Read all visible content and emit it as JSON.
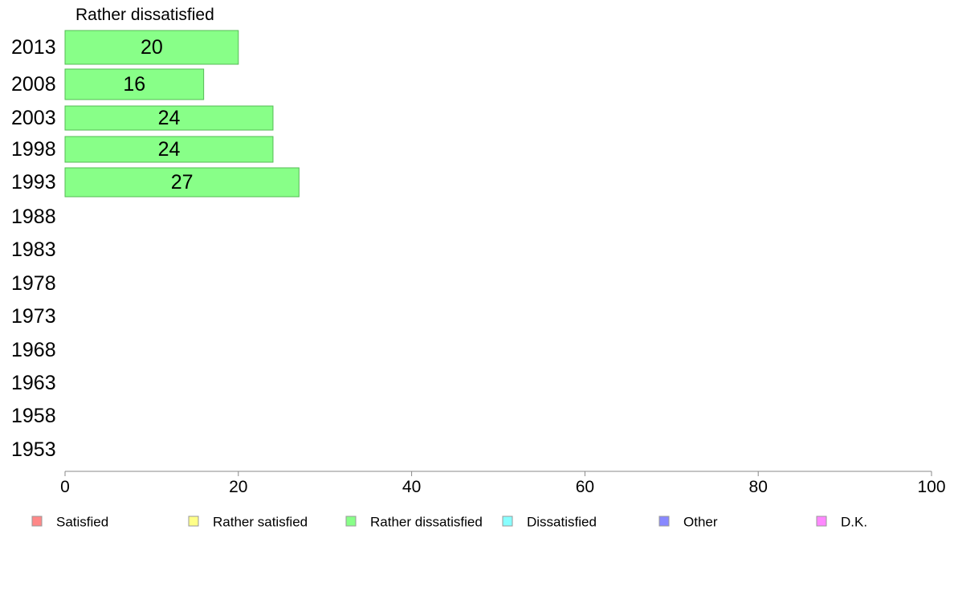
{
  "chart_data": {
    "type": "bar",
    "orientation": "horizontal",
    "series_label": "Rather dissatisfied",
    "categories": [
      "2013",
      "2008",
      "2003",
      "1998",
      "1993",
      "1988",
      "1983",
      "1978",
      "1973",
      "1968",
      "1963",
      "1958",
      "1953"
    ],
    "values": [
      20,
      16,
      24,
      24,
      27,
      null,
      null,
      null,
      null,
      null,
      null,
      null,
      null
    ],
    "value_labels": [
      "20",
      "16",
      "24",
      "24",
      "27",
      "",
      "",
      "",
      "",
      "",
      "",
      "",
      ""
    ],
    "xlim": [
      0,
      100
    ],
    "xticks": [
      0,
      20,
      40,
      60,
      80,
      100
    ],
    "bar_color": "#88ff88",
    "bar_edge_color": "#55bb55",
    "legend": {
      "placement": "bottom",
      "entries": [
        {
          "label": "Satisfied",
          "color": "#ff8888"
        },
        {
          "label": "Rather satisfied",
          "color": "#ffff88"
        },
        {
          "label": "Rather dissatisfied",
          "color": "#88ff88"
        },
        {
          "label": "Dissatisfied",
          "color": "#88ffff"
        },
        {
          "label": "Other",
          "color": "#8888ff"
        },
        {
          "label": "D.K.",
          "color": "#ff88ff"
        }
      ]
    },
    "grid": false
  }
}
